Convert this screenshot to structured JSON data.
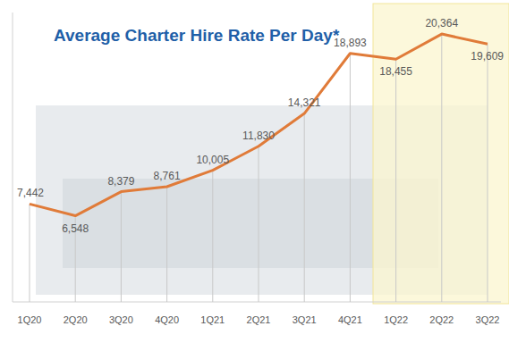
{
  "chart_data": {
    "type": "line",
    "title": "Average Charter Hire Rate Per Day*",
    "categories": [
      "1Q20",
      "2Q20",
      "3Q20",
      "4Q20",
      "1Q21",
      "2Q21",
      "3Q21",
      "4Q21",
      "1Q22",
      "2Q22",
      "3Q22"
    ],
    "values": [
      7442,
      6548,
      8379,
      8761,
      10005,
      11830,
      14321,
      18893,
      18455,
      20364,
      19609
    ],
    "value_labels": [
      "7,442",
      "6,548",
      "8,379",
      "8,761",
      "10,005",
      "11,830",
      "14,321",
      "18,893",
      "18,455",
      "20,364",
      "19,609"
    ],
    "color": "#e07b39",
    "ylim": [
      0,
      22000
    ],
    "data_labels": true,
    "tick_labels": "x",
    "grid": false
  }
}
